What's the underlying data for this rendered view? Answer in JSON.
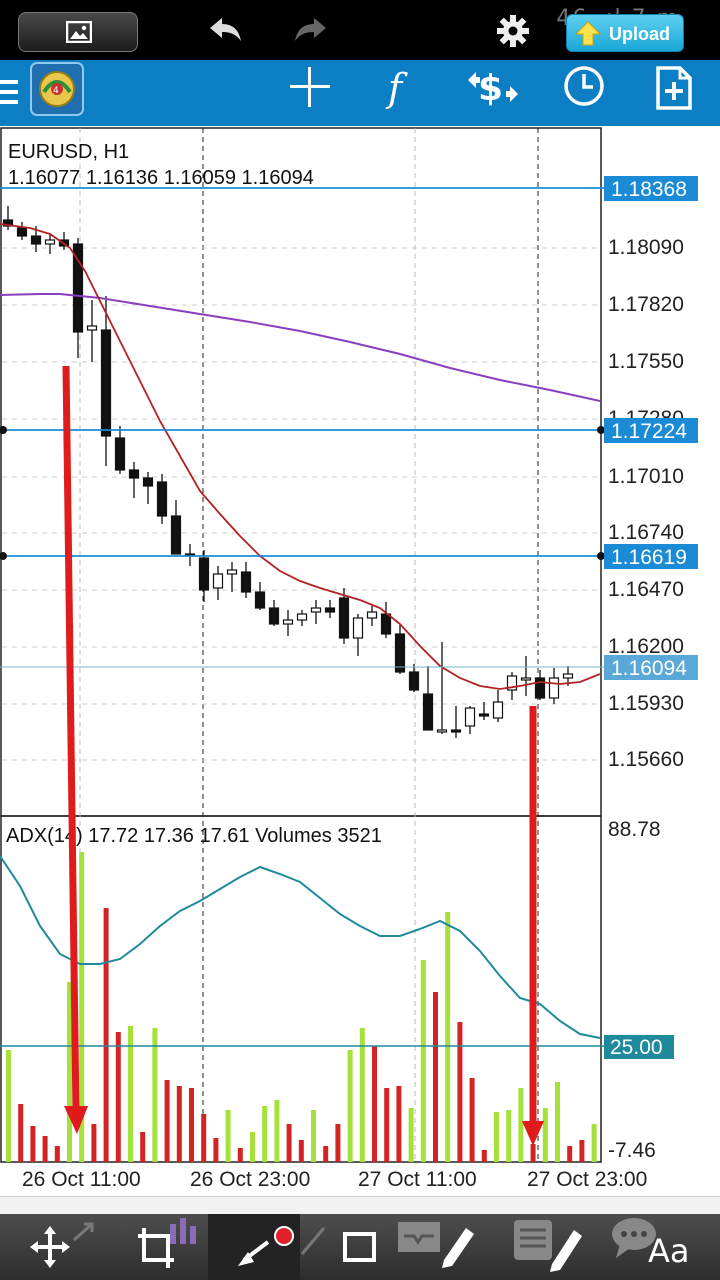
{
  "status_bar": {
    "status_text": "46 .ıl 7 m",
    "upload_label": "Upload"
  },
  "toolbar": {
    "icons": [
      "menu-icon",
      "mt-logo-icon",
      "crosshair-icon",
      "indicators-icon",
      "trade-icon",
      "clock-icon",
      "new-order-icon"
    ]
  },
  "chart": {
    "symbol_label": "EURUSD, H1",
    "ohlc_label": "1.16077 1.16136 1.16059 1.16094",
    "indicator_label": "ADX(14) 17.72 17.36 17.61 Volumes 3521",
    "price_scale": [
      "1.18090",
      "1.17820",
      "1.17550",
      "1.17280",
      "1.17010",
      "1.16740",
      "1.16470",
      "1.16200",
      "1.15930",
      "1.15660"
    ],
    "horizontal_lines": [
      "1.18368",
      "1.17224",
      "1.16619"
    ],
    "current_price": "1.16094",
    "indicator_scale": [
      "88.78",
      "25.00",
      "-7.46"
    ],
    "time_labels": [
      "26 Oct 11:00",
      "26 Oct 23:00",
      "27 Oct 11:00",
      "27 Oct 23:00"
    ],
    "colors": {
      "bull_volume": "#a6e03a",
      "bear_volume": "#d42323",
      "adx_line": "#1f8a9c",
      "ma_fast": "#b22222",
      "ma_slow": "#8a3fbf",
      "hline": "#1b8bd6",
      "annotation_arrow": "#e01b1b"
    }
  },
  "chart_data": {
    "type": "candlestick",
    "symbol": "EURUSD",
    "timeframe": "H1",
    "x": [
      "26 Oct 11:00",
      "26 Oct 23:00",
      "27 Oct 11:00",
      "27 Oct 23:00"
    ],
    "ylim": [
      1.1545,
      1.1855
    ],
    "candles_close": [
      1.1824,
      1.182,
      1.1813,
      1.1811,
      1.1814,
      1.176,
      1.1765,
      1.1718,
      1.1703,
      1.1697,
      1.1685,
      1.1665,
      1.1652,
      1.1648,
      1.1638,
      1.1642,
      1.1641,
      1.163,
      1.1623,
      1.1619,
      1.1622,
      1.1628,
      1.1629,
      1.1636,
      1.1617,
      1.163,
      1.1625,
      1.1632,
      1.1612,
      1.1598,
      1.159,
      1.1582,
      1.159,
      1.1593,
      1.1596,
      1.1608,
      1.1609,
      1.1613,
      1.1603,
      1.1612,
      1.1609
    ]
  },
  "bottom_bar": {
    "icons": [
      "move-icon",
      "crop-icon",
      "candles-icon",
      "draw-arrow-icon",
      "rectangle-icon",
      "tray-edit-icon",
      "note-edit-icon",
      "text-icon"
    ],
    "text_tool_label": "Aa"
  }
}
